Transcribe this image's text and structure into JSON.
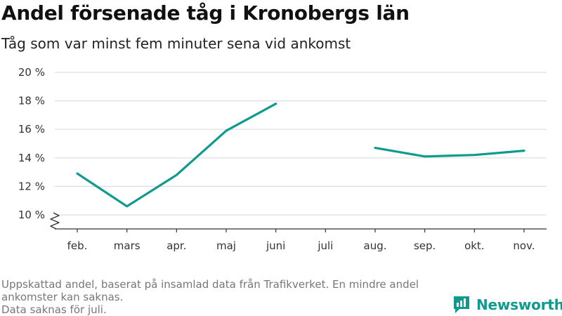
{
  "title": "Andel försenade tåg i Kronobergs län",
  "subtitle": "Tåg som var minst fem minuter sena vid ankomst",
  "footnote": {
    "line1": "Uppskattad andel, baserat på insamlad data från Trafikverket. En mindre andel ankomster kan saknas.",
    "line2": "Data saknas för juli."
  },
  "brand": {
    "name": "Newsworthy",
    "icon": "newsworthy-logo-icon"
  },
  "colors": {
    "line": "#0f9a8e",
    "grid": "#dddddd",
    "axis": "#333333"
  },
  "chart_data": {
    "type": "line",
    "categories": [
      "feb.",
      "mars",
      "apr.",
      "maj",
      "juni",
      "juli",
      "aug.",
      "sep.",
      "okt.",
      "nov."
    ],
    "series": [
      {
        "values": [
          12.9,
          10.6,
          12.8,
          15.9,
          17.8,
          null,
          14.7,
          14.1,
          14.2,
          14.5
        ]
      }
    ],
    "y_ticks": [
      10,
      12,
      14,
      16,
      18,
      20
    ],
    "y_tick_labels": [
      "10 %",
      "12 %",
      "14 %",
      "16 %",
      "18 %",
      "20 %"
    ],
    "ylim": [
      10,
      20
    ],
    "y_axis_break": true,
    "grid": true,
    "xlabel": "",
    "ylabel": ""
  }
}
